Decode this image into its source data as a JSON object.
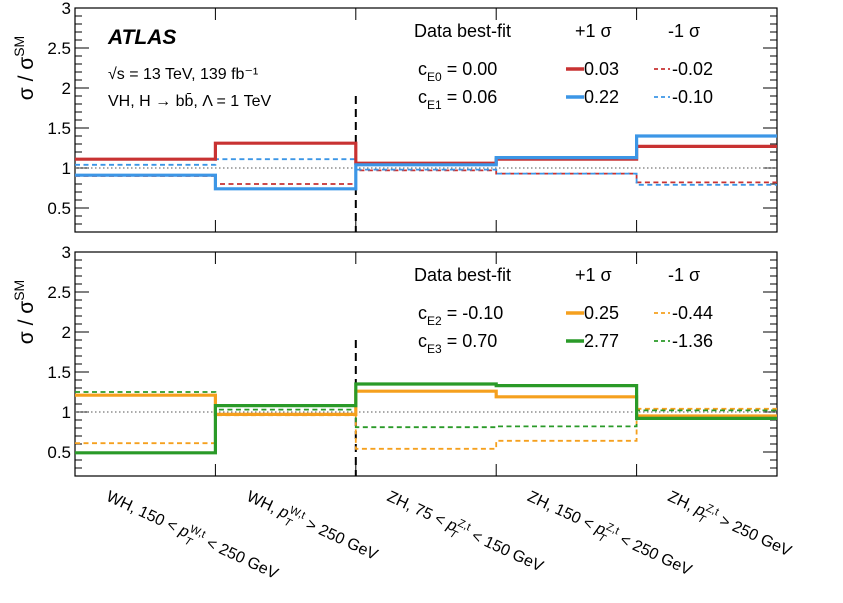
{
  "chart_data": [
    {
      "type": "line",
      "panel": "top",
      "ylabel": "σ / σ^SM",
      "ylim": [
        0.2,
        3.0
      ],
      "yticks": [
        "0.5",
        "1",
        "1.5",
        "2",
        "2.5",
        "3"
      ],
      "categories": [
        "WH, 150 < p_T^W,t < 250 GeV",
        "WH, p_T^W,t > 250 GeV",
        "ZH, 75 < p_T^Z,t < 150 GeV",
        "ZH, 150 < p_T^Z,t < 250 GeV",
        "ZH, p_T^Z,t > 250 GeV"
      ],
      "experiment": "ATLAS",
      "energy_label": "√s = 13 TeV, 139 fb⁻¹",
      "process_label": "VH, H → bb̄, Λ = 1 TeV",
      "legend_header": [
        "Data best-fit",
        "+1 σ",
        "-1 σ"
      ],
      "coefficients": [
        {
          "name": "c",
          "sub": "E0",
          "value": "= 0.00"
        },
        {
          "name": "c",
          "sub": "E1",
          "value": "= 0.06"
        }
      ],
      "series": [
        {
          "coef": "E0",
          "variation": "+1 σ",
          "label": "0.03",
          "color": "#c83232",
          "style": "solid",
          "values": [
            1.11,
            1.31,
            1.06,
            1.11,
            1.27
          ]
        },
        {
          "coef": "E0",
          "variation": "-1 σ",
          "label": "-0.02",
          "color": "#c83232",
          "style": "dashed",
          "values": [
            0.9,
            0.8,
            0.97,
            0.93,
            0.82
          ]
        },
        {
          "coef": "E1",
          "variation": "+1 σ",
          "label": "0.22",
          "color": "#3c96e6",
          "style": "solid",
          "values": [
            0.91,
            0.74,
            1.04,
            1.13,
            1.4
          ]
        },
        {
          "coef": "E1",
          "variation": "-1 σ",
          "label": "-0.10",
          "color": "#3c96e6",
          "style": "dashed",
          "values": [
            1.04,
            1.11,
            0.98,
            0.93,
            0.79
          ]
        }
      ]
    },
    {
      "type": "line",
      "panel": "bottom",
      "ylabel": "σ / σ^SM",
      "ylim": [
        0.2,
        3.0
      ],
      "yticks": [
        "0.5",
        "1",
        "1.5",
        "2",
        "2.5",
        "3"
      ],
      "legend_header": [
        "Data best-fit",
        "+1 σ",
        "-1 σ"
      ],
      "coefficients": [
        {
          "name": "c",
          "sub": "E2",
          "value": "= -0.10"
        },
        {
          "name": "c",
          "sub": "E3",
          "value": "= 0.70"
        }
      ],
      "series": [
        {
          "coef": "E2",
          "variation": "+1 σ",
          "label": "0.25",
          "color": "#f5a01e",
          "style": "solid",
          "values": [
            1.21,
            0.97,
            1.26,
            1.19,
            0.95
          ]
        },
        {
          "coef": "E2",
          "variation": "-1 σ",
          "label": "-0.44",
          "color": "#f5a01e",
          "style": "dashed",
          "values": [
            0.61,
            0.96,
            0.54,
            0.64,
            1.04
          ]
        },
        {
          "coef": "E3",
          "variation": "+1 σ",
          "label": "2.77",
          "color": "#2a9a28",
          "style": "solid",
          "values": [
            0.49,
            1.08,
            1.35,
            1.33,
            0.92
          ]
        },
        {
          "coef": "E3",
          "variation": "-1 σ",
          "label": "-1.36",
          "color": "#2a9a28",
          "style": "dashed",
          "values": [
            1.25,
            1.03,
            0.81,
            0.82,
            1.02
          ]
        }
      ]
    }
  ]
}
